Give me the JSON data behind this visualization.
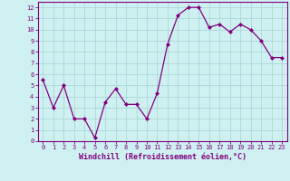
{
  "x": [
    0,
    1,
    2,
    3,
    4,
    5,
    6,
    7,
    8,
    9,
    10,
    11,
    12,
    13,
    14,
    15,
    16,
    17,
    18,
    19,
    20,
    21,
    22,
    23
  ],
  "y": [
    5.5,
    3.0,
    5.0,
    2.0,
    2.0,
    0.3,
    3.5,
    4.7,
    3.3,
    3.3,
    2.0,
    4.3,
    8.7,
    11.3,
    12.0,
    12.0,
    10.2,
    10.5,
    9.8,
    10.5,
    10.0,
    9.0,
    7.5,
    7.5
  ],
  "line_color": "#800080",
  "marker": "D",
  "marker_size": 2,
  "bg_color": "#cff0f0",
  "grid_color": "#aad8d8",
  "xlabel": "Windchill (Refroidissement éolien,°C)",
  "xlim": [
    -0.5,
    23.5
  ],
  "ylim": [
    0,
    12.5
  ],
  "xticks": [
    0,
    1,
    2,
    3,
    4,
    5,
    6,
    7,
    8,
    9,
    10,
    11,
    12,
    13,
    14,
    15,
    16,
    17,
    18,
    19,
    20,
    21,
    22,
    23
  ],
  "yticks": [
    0,
    1,
    2,
    3,
    4,
    5,
    6,
    7,
    8,
    9,
    10,
    11,
    12
  ],
  "axis_color": "#800080",
  "tick_color": "#800080",
  "label_color": "#800080",
  "tick_fontsize": 5.0,
  "xlabel_fontsize": 6.0
}
